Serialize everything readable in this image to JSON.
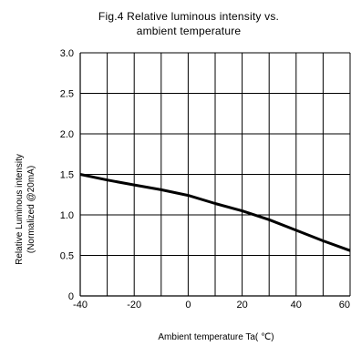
{
  "chart_data": {
    "type": "line",
    "title_lines": [
      "Fig.4 Relative luminous intensity vs.",
      "ambient temperature"
    ],
    "xlabel": "Ambient temperature Ta( ℃)",
    "ylabel_lines": [
      "Relative Luminous intensity",
      "(Normalized @20mA)"
    ],
    "xlim": [
      -40,
      60
    ],
    "ylim": [
      0,
      3.0
    ],
    "x_ticks": [
      "-40",
      "-20",
      "0",
      "20",
      "40",
      "60"
    ],
    "y_ticks": [
      "0",
      "0.5",
      "1.0",
      "1.5",
      "2.0",
      "2.5",
      "3.0"
    ],
    "grid": true,
    "series": [
      {
        "x": [
          -40,
          -30,
          -20,
          -10,
          0,
          10,
          20,
          30,
          40,
          50,
          60
        ],
        "values": [
          1.5,
          1.43,
          1.37,
          1.31,
          1.24,
          1.14,
          1.05,
          0.94,
          0.81,
          0.68,
          0.56
        ]
      }
    ]
  }
}
